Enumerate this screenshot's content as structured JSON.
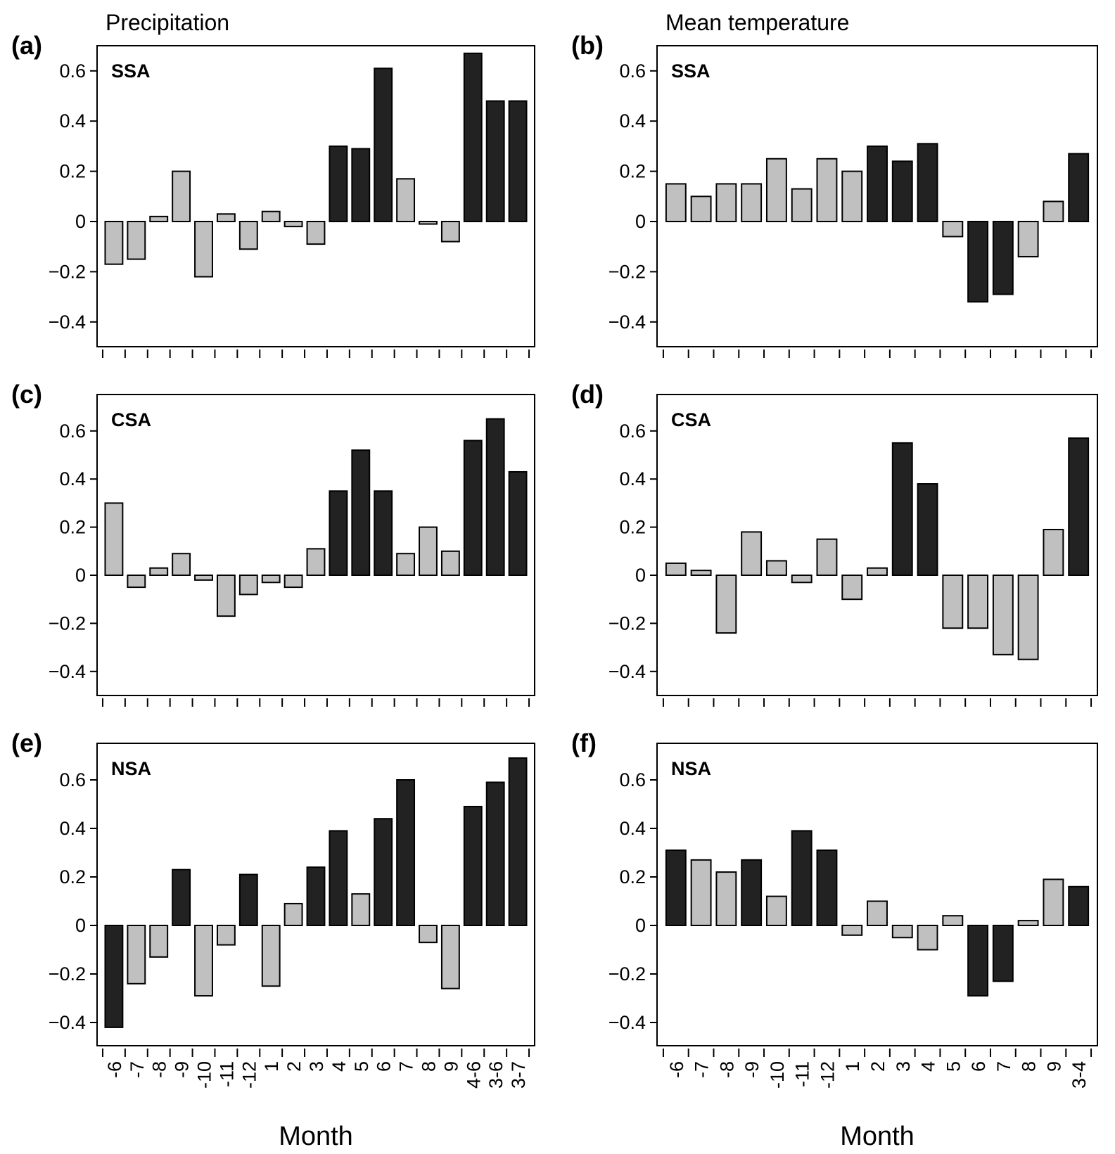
{
  "chart_data": [
    {
      "id": "a",
      "type": "bar",
      "panel_label": "(a)",
      "title": "Precipitation",
      "region": "SSA",
      "categories": [
        "-6",
        "-7",
        "-8",
        "-9",
        "-10",
        "-11",
        "-12",
        "1",
        "2",
        "3",
        "4",
        "5",
        "6",
        "7",
        "8",
        "9",
        "4-6",
        "3-6",
        "3-7"
      ],
      "values": [
        -0.17,
        -0.15,
        0.02,
        0.2,
        -0.22,
        0.03,
        -0.11,
        0.04,
        -0.02,
        -0.09,
        0.3,
        0.29,
        0.61,
        0.17,
        -0.01,
        -0.08,
        0.67,
        0.48,
        0.48
      ],
      "significant": [
        false,
        false,
        false,
        false,
        false,
        false,
        false,
        false,
        false,
        false,
        true,
        true,
        true,
        false,
        false,
        false,
        true,
        true,
        true
      ],
      "xlabel": "",
      "ylabel": "",
      "ylim": [
        -0.5,
        0.7
      ],
      "yticks": [
        "0.6",
        "0.4",
        "0.2",
        "0",
        "−0.2",
        "−0.4"
      ],
      "ytick_values": [
        0.6,
        0.4,
        0.2,
        0,
        -0.2,
        -0.4
      ]
    },
    {
      "id": "b",
      "type": "bar",
      "panel_label": "(b)",
      "title": "Mean temperature",
      "region": "SSA",
      "categories": [
        "-6",
        "-7",
        "-8",
        "-9",
        "-10",
        "-11",
        "-12",
        "1",
        "2",
        "3",
        "4",
        "5",
        "6",
        "7",
        "8",
        "9",
        "3-4"
      ],
      "values": [
        0.15,
        0.1,
        0.15,
        0.15,
        0.25,
        0.13,
        0.25,
        0.2,
        0.3,
        0.24,
        0.31,
        -0.06,
        -0.32,
        -0.29,
        -0.14,
        0.08,
        0.27
      ],
      "significant": [
        false,
        false,
        false,
        false,
        false,
        false,
        false,
        false,
        true,
        true,
        true,
        false,
        true,
        true,
        false,
        false,
        true
      ],
      "xlabel": "",
      "ylabel": "",
      "ylim": [
        -0.5,
        0.7
      ],
      "yticks": [
        "0.6",
        "0.4",
        "0.2",
        "0",
        "−0.2",
        "−0.4"
      ],
      "ytick_values": [
        0.6,
        0.4,
        0.2,
        0,
        -0.2,
        -0.4
      ]
    },
    {
      "id": "c",
      "type": "bar",
      "panel_label": "(c)",
      "title": "",
      "region": "CSA",
      "categories": [
        "-6",
        "-7",
        "-8",
        "-9",
        "-10",
        "-11",
        "-12",
        "1",
        "2",
        "3",
        "4",
        "5",
        "6",
        "7",
        "8",
        "9",
        "4-6",
        "3-6",
        "3-7"
      ],
      "values": [
        0.3,
        -0.05,
        0.03,
        0.09,
        -0.02,
        -0.17,
        -0.08,
        -0.03,
        -0.05,
        0.11,
        0.35,
        0.52,
        0.35,
        0.09,
        0.2,
        0.1,
        0.56,
        0.65,
        0.43
      ],
      "significant": [
        false,
        false,
        false,
        false,
        false,
        false,
        false,
        false,
        false,
        false,
        true,
        true,
        true,
        false,
        false,
        false,
        true,
        true,
        true
      ],
      "xlabel": "",
      "ylabel": "",
      "ylim": [
        -0.5,
        0.75
      ],
      "yticks": [
        "0.6",
        "0.4",
        "0.2",
        "0",
        "−0.2",
        "−0.4"
      ],
      "ytick_values": [
        0.6,
        0.4,
        0.2,
        0,
        -0.2,
        -0.4
      ]
    },
    {
      "id": "d",
      "type": "bar",
      "panel_label": "(d)",
      "title": "",
      "region": "CSA",
      "categories": [
        "-6",
        "-7",
        "-8",
        "-9",
        "-10",
        "-11",
        "-12",
        "1",
        "2",
        "3",
        "4",
        "5",
        "6",
        "7",
        "8",
        "9",
        "3-4"
      ],
      "values": [
        0.05,
        0.02,
        -0.24,
        0.18,
        0.06,
        -0.03,
        0.15,
        -0.1,
        0.03,
        0.55,
        0.38,
        -0.22,
        -0.22,
        -0.33,
        -0.35,
        0.19,
        0.57
      ],
      "significant": [
        false,
        false,
        false,
        false,
        false,
        false,
        false,
        false,
        false,
        true,
        true,
        false,
        false,
        false,
        false,
        false,
        true
      ],
      "xlabel": "",
      "ylabel": "",
      "ylim": [
        -0.5,
        0.75
      ],
      "yticks": [
        "0.6",
        "0.4",
        "0.2",
        "0",
        "−0.2",
        "−0.4"
      ],
      "ytick_values": [
        0.6,
        0.4,
        0.2,
        0,
        -0.2,
        -0.4
      ]
    },
    {
      "id": "e",
      "type": "bar",
      "panel_label": "(e)",
      "title": "",
      "region": "NSA",
      "categories": [
        "-6",
        "-7",
        "-8",
        "-9",
        "-10",
        "-11",
        "-12",
        "1",
        "2",
        "3",
        "4",
        "5",
        "6",
        "7",
        "8",
        "9",
        "4-6",
        "3-6",
        "3-7"
      ],
      "values": [
        -0.42,
        -0.24,
        -0.13,
        0.23,
        -0.29,
        -0.08,
        0.21,
        -0.25,
        0.09,
        0.24,
        0.39,
        0.13,
        0.44,
        0.6,
        -0.07,
        -0.26,
        0.49,
        0.59,
        0.69
      ],
      "significant": [
        true,
        false,
        false,
        true,
        false,
        false,
        true,
        false,
        false,
        true,
        true,
        false,
        true,
        true,
        false,
        false,
        true,
        true,
        true
      ],
      "xlabel": "Month",
      "ylabel": "",
      "ylim": [
        -0.5,
        0.75
      ],
      "yticks": [
        "0.6",
        "0.4",
        "0.2",
        "0",
        "−0.2",
        "−0.4"
      ],
      "ytick_values": [
        0.6,
        0.4,
        0.2,
        0,
        -0.2,
        -0.4
      ]
    },
    {
      "id": "f",
      "type": "bar",
      "panel_label": "(f)",
      "title": "",
      "region": "NSA",
      "categories": [
        "-6",
        "-7",
        "-8",
        "-9",
        "-10",
        "-11",
        "-12",
        "1",
        "2",
        "3",
        "4",
        "5",
        "6",
        "7",
        "8",
        "9",
        "3-4"
      ],
      "values": [
        0.31,
        0.27,
        0.22,
        0.27,
        0.12,
        0.39,
        0.31,
        -0.04,
        0.1,
        -0.05,
        -0.1,
        0.04,
        -0.29,
        -0.23,
        0.02,
        0.19,
        0.16
      ],
      "significant": [
        true,
        false,
        false,
        true,
        false,
        true,
        true,
        false,
        false,
        false,
        false,
        false,
        true,
        true,
        false,
        false,
        true
      ],
      "xlabel": "Month",
      "ylabel": "",
      "ylim": [
        -0.5,
        0.75
      ],
      "yticks": [
        "0.6",
        "0.4",
        "0.2",
        "0",
        "−0.2",
        "−0.4"
      ],
      "ytick_values": [
        0.6,
        0.4,
        0.2,
        0,
        -0.2,
        -0.4
      ]
    }
  ],
  "colors": {
    "significant": "#222222",
    "not_significant": "#c0c0c0",
    "outline": "#000000"
  }
}
